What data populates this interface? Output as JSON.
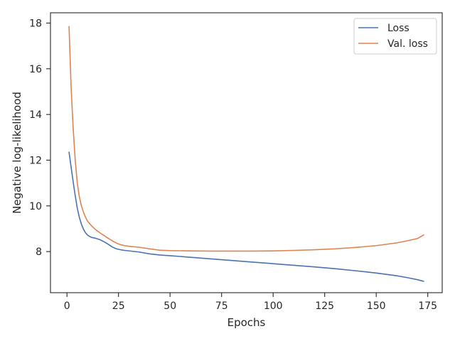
{
  "chart_data": {
    "type": "line",
    "title": "",
    "xlabel": "Epochs",
    "ylabel": "Negative log-likelihood",
    "xlim": [
      -8,
      182
    ],
    "ylim": [
      6.2,
      18.45
    ],
    "xticks": [
      0,
      25,
      50,
      75,
      100,
      125,
      150,
      175
    ],
    "yticks": [
      8,
      10,
      12,
      14,
      16,
      18
    ],
    "grid": false,
    "legend_position": "top-right",
    "series": [
      {
        "name": "Loss",
        "color": "#4c72b0",
        "x": [
          1,
          2,
          3,
          4,
          5,
          6,
          7,
          8,
          9,
          10,
          11,
          12,
          14,
          16,
          18,
          20,
          22,
          24,
          26,
          28,
          30,
          35,
          40,
          45,
          50,
          60,
          70,
          80,
          90,
          100,
          110,
          120,
          130,
          140,
          150,
          160,
          165,
          170,
          173
        ],
        "y": [
          12.35,
          11.7,
          11.05,
          10.45,
          9.9,
          9.5,
          9.2,
          8.98,
          8.82,
          8.72,
          8.66,
          8.62,
          8.58,
          8.52,
          8.43,
          8.32,
          8.2,
          8.12,
          8.08,
          8.05,
          8.03,
          7.98,
          7.9,
          7.85,
          7.82,
          7.75,
          7.68,
          7.61,
          7.54,
          7.47,
          7.4,
          7.33,
          7.25,
          7.16,
          7.06,
          6.94,
          6.86,
          6.77,
          6.7
        ]
      },
      {
        "name": "Val. loss",
        "color": "#dd8452",
        "x": [
          1,
          2,
          3,
          4,
          5,
          6,
          7,
          8,
          9,
          10,
          11,
          12,
          14,
          16,
          18,
          20,
          22,
          24,
          26,
          28,
          30,
          35,
          40,
          45,
          50,
          60,
          70,
          80,
          90,
          100,
          110,
          120,
          130,
          140,
          150,
          160,
          165,
          170,
          173
        ],
        "y": [
          17.85,
          15.2,
          13.4,
          12.0,
          11.0,
          10.4,
          10.0,
          9.72,
          9.5,
          9.33,
          9.22,
          9.12,
          8.95,
          8.82,
          8.7,
          8.58,
          8.47,
          8.37,
          8.3,
          8.26,
          8.23,
          8.19,
          8.12,
          8.06,
          8.04,
          8.03,
          8.02,
          8.02,
          8.02,
          8.03,
          8.05,
          8.08,
          8.12,
          8.18,
          8.26,
          8.38,
          8.47,
          8.57,
          8.73
        ]
      }
    ]
  }
}
